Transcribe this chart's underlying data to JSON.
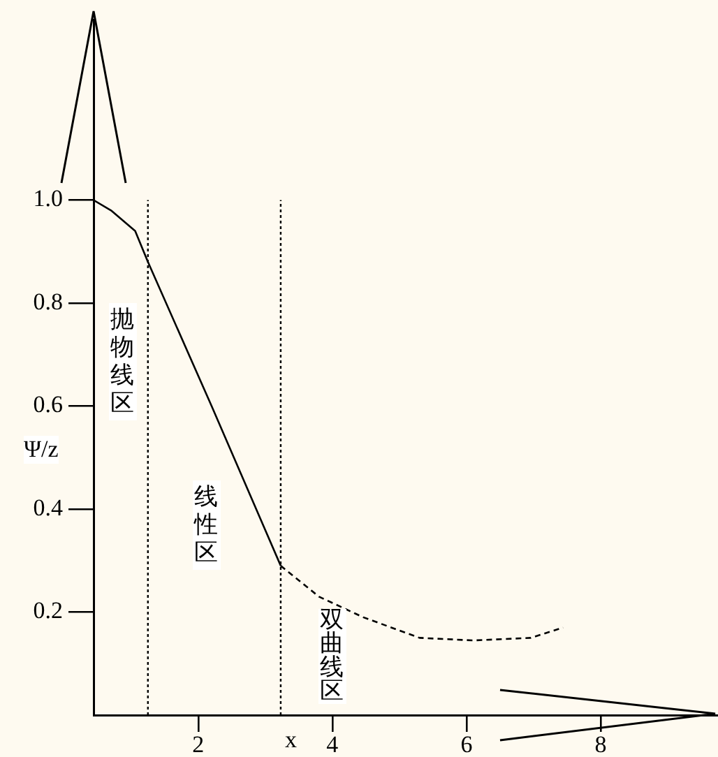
{
  "chart_data": {
    "type": "line",
    "xlabel": "x",
    "ylabel": "Ψ/z",
    "xlim": [
      0.44,
      9.75
    ],
    "xticks": [
      2,
      4,
      6,
      8
    ],
    "ylim": [
      0,
      1.35
    ],
    "yticks": [
      {
        "value": 0.2,
        "label": "0.2"
      },
      {
        "value": 0.4,
        "label": "0.4"
      },
      {
        "value": 0.6,
        "label": "0.6"
      },
      {
        "value": 0.8,
        "label": "0.8"
      },
      {
        "value": 1,
        "label": "1.0"
      }
    ],
    "series": [
      {
        "color": "#000000",
        "line_style": "solid",
        "x": [
          0.44,
          0.7,
          1.06,
          1.25,
          2.2,
          3.23
        ],
        "values": [
          1.0,
          0.98,
          0.94,
          0.88,
          0.6,
          0.29
        ]
      },
      {
        "color": "#000000",
        "line_style": "dashed",
        "x": [
          3.23,
          3.8,
          4.46,
          5.3,
          6.1,
          6.96,
          7.44
        ],
        "values": [
          0.29,
          0.23,
          0.19,
          0.15,
          0.145,
          0.15,
          0.17
        ]
      }
    ],
    "ref_lines": [
      {
        "axis": "x",
        "value": 1.25,
        "line_style": "dotted",
        "color": "#000000"
      },
      {
        "axis": "x",
        "value": 3.23,
        "line_style": "dotted",
        "color": "#000000"
      }
    ],
    "annotations": [
      "抛物线区",
      "线性区",
      "双曲线区"
    ],
    "grid": false,
    "legend": false,
    "marker": "none"
  }
}
